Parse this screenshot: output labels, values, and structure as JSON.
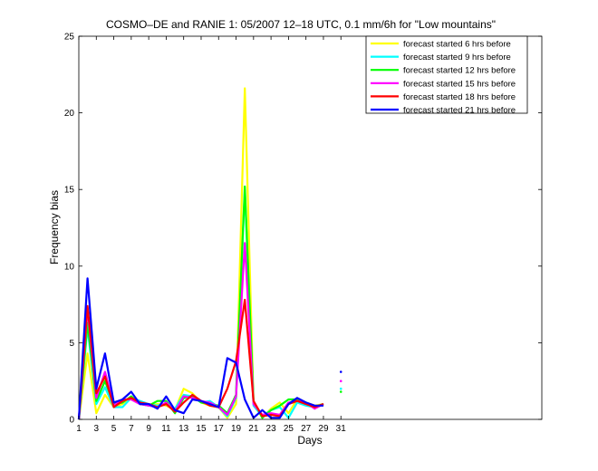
{
  "chart_data": {
    "type": "line",
    "title": "COSMO–DE and RANIE 1: 05/2007 12–18 UTC, 0.1 mm/6h for \"Low mountains\"",
    "xlabel": "Days",
    "ylabel": "Frequency bias",
    "xlim": [
      1,
      54
    ],
    "ylim": [
      0,
      25
    ],
    "xticks": [
      1,
      3,
      5,
      7,
      9,
      11,
      13,
      15,
      17,
      19,
      21,
      23,
      25,
      27,
      29,
      31
    ],
    "yticks": [
      0,
      5,
      10,
      15,
      20,
      25
    ],
    "legend_position": "top-right",
    "series": [
      {
        "name": "forecast started 6 hrs before",
        "color": "#ffff00",
        "x": [
          1,
          2,
          3,
          4,
          5,
          6,
          7,
          8,
          9,
          10,
          11,
          12,
          13,
          14,
          15,
          16,
          17,
          18,
          19,
          20,
          21,
          22,
          23,
          24,
          25,
          26,
          27,
          28,
          29
        ],
        "y": [
          0,
          4.3,
          0.4,
          1.6,
          0.8,
          1.0,
          1.5,
          1.1,
          0.9,
          1.0,
          0.9,
          0.6,
          2.0,
          1.7,
          1.1,
          0.9,
          0.8,
          0.1,
          1.0,
          21.6,
          1.1,
          0.1,
          0.7,
          1.1,
          0.4,
          1.3,
          1.1,
          0.9,
          1.0
        ]
      },
      {
        "name": "forecast started 9 hrs before",
        "color": "#00ffff",
        "x": [
          1,
          2,
          3,
          4,
          5,
          6,
          7,
          8,
          9,
          10,
          11,
          12,
          13,
          14,
          15,
          16,
          17,
          18,
          19,
          20,
          21,
          22,
          23,
          24,
          25,
          26,
          27,
          28,
          29
        ],
        "y": [
          0,
          6.0,
          1.0,
          2.1,
          0.8,
          0.8,
          1.4,
          1.2,
          1.0,
          0.9,
          1.0,
          0.7,
          1.6,
          1.5,
          1.1,
          1.2,
          0.8,
          0.2,
          1.4,
          15.0,
          0.9,
          0.2,
          0.6,
          0.8,
          0.1,
          1.1,
          0.9,
          0.8,
          1.0
        ]
      },
      {
        "name": "forecast started 12 hrs before",
        "color": "#00ff00",
        "x": [
          1,
          2,
          3,
          4,
          5,
          6,
          7,
          8,
          9,
          10,
          11,
          12,
          13,
          14,
          15,
          16,
          17,
          18,
          19,
          20,
          21,
          22,
          23,
          24,
          25,
          26,
          27,
          28,
          29
        ],
        "y": [
          0,
          6.3,
          1.2,
          2.5,
          1.0,
          1.1,
          1.5,
          1.0,
          0.9,
          1.2,
          1.2,
          0.4,
          1.4,
          1.5,
          1.1,
          1.0,
          0.9,
          0.4,
          1.6,
          15.2,
          1.2,
          0.1,
          0.6,
          0.9,
          1.3,
          1.3,
          1.1,
          0.8,
          1.0
        ]
      },
      {
        "name": "forecast started 15 hrs before",
        "color": "#ff00ff",
        "x": [
          1,
          2,
          3,
          4,
          5,
          6,
          7,
          8,
          9,
          10,
          11,
          12,
          13,
          14,
          15,
          16,
          17,
          18,
          19,
          20,
          21,
          22,
          23,
          24,
          25,
          26,
          27,
          28,
          29
        ],
        "y": [
          0,
          7.2,
          1.4,
          3.1,
          0.9,
          1.3,
          1.3,
          1.0,
          0.9,
          0.8,
          1.1,
          0.5,
          1.5,
          1.4,
          1.2,
          1.1,
          0.8,
          0.3,
          1.5,
          11.5,
          1.0,
          0.3,
          0.4,
          0.3,
          1.1,
          1.2,
          1.1,
          0.7,
          1.0
        ]
      },
      {
        "name": "forecast started 18 hrs before",
        "color": "#ff0000",
        "x": [
          1,
          2,
          3,
          4,
          5,
          6,
          7,
          8,
          9,
          10,
          11,
          12,
          13,
          14,
          15,
          16,
          17,
          18,
          19,
          20,
          21,
          22,
          23,
          24,
          25,
          26,
          27,
          28,
          29
        ],
        "y": [
          0,
          7.4,
          1.7,
          2.8,
          0.8,
          1.2,
          1.4,
          1.1,
          1.0,
          0.8,
          1.0,
          0.5,
          1.1,
          1.6,
          1.2,
          0.9,
          0.8,
          2.0,
          3.8,
          7.8,
          1.2,
          0.2,
          0.3,
          0.2,
          1.0,
          1.2,
          1.0,
          0.8,
          1.0
        ]
      },
      {
        "name": "forecast started 21 hrs before",
        "color": "#0000ff",
        "x": [
          1,
          2,
          3,
          4,
          5,
          6,
          7,
          8,
          9,
          10,
          11,
          12,
          13,
          14,
          15,
          16,
          17,
          18,
          19,
          20,
          21,
          22,
          23,
          24,
          25,
          26,
          27,
          28,
          29
        ],
        "y": [
          0,
          9.2,
          2.0,
          4.3,
          1.1,
          1.3,
          1.8,
          1.0,
          1.0,
          0.7,
          1.5,
          0.6,
          0.4,
          1.3,
          1.2,
          1.0,
          0.8,
          4.0,
          3.7,
          1.3,
          0.1,
          0.6,
          0.1,
          0.1,
          1.0,
          1.4,
          1.1,
          0.9,
          0.9
        ]
      }
    ],
    "isolated_points": [
      {
        "color": "#0000ff",
        "x": 31,
        "y": 3.1
      },
      {
        "color": "#ff00ff",
        "x": 31,
        "y": 2.5
      },
      {
        "color": "#00ffff",
        "x": 31,
        "y": 2.0
      },
      {
        "color": "#00ff00",
        "x": 31,
        "y": 1.8
      }
    ]
  }
}
